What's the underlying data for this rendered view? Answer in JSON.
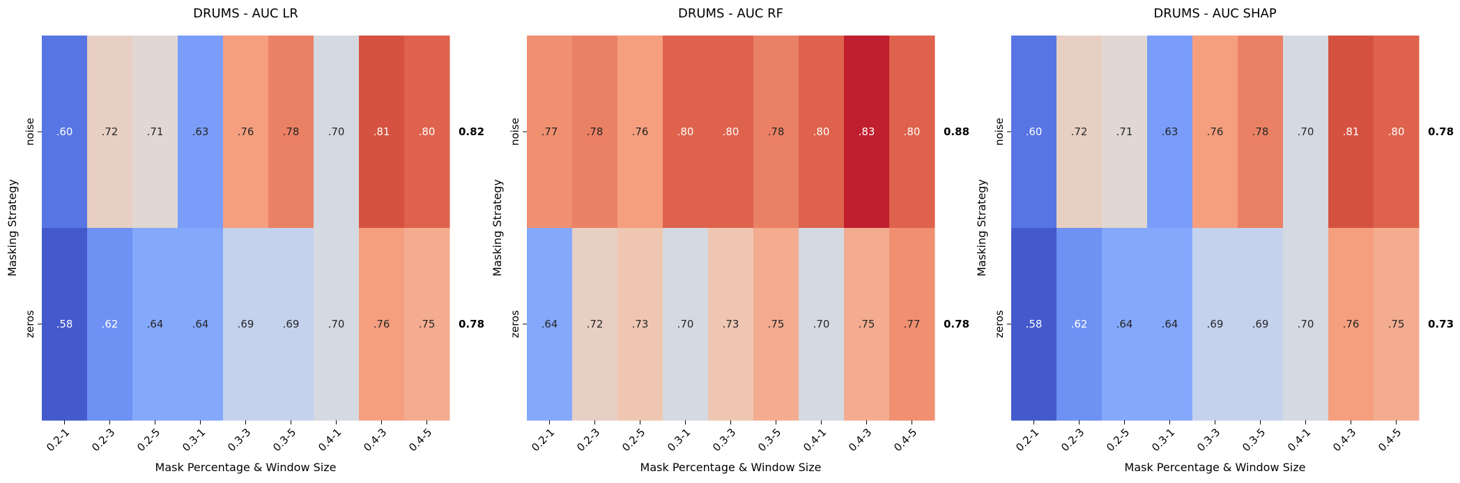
{
  "chart_data": [
    {
      "type": "heatmap",
      "title": "DRUMS - AUC LR",
      "xlabel": "Mask Percentage & Window Size",
      "ylabel": "Masking Strategy",
      "x_categories": [
        "0.2-1",
        "0.2-3",
        "0.2-5",
        "0.3-1",
        "0.3-3",
        "0.3-5",
        "0.4-1",
        "0.4-3",
        "0.4-5"
      ],
      "y_categories": [
        "noise",
        "zeros"
      ],
      "values": [
        [
          0.6,
          0.72,
          0.71,
          0.63,
          0.76,
          0.78,
          0.7,
          0.81,
          0.8
        ],
        [
          0.58,
          0.62,
          0.64,
          0.64,
          0.69,
          0.69,
          0.7,
          0.76,
          0.75
        ]
      ],
      "cell_labels": [
        [
          ".60",
          ".72",
          ".71",
          ".63",
          ".76",
          ".78",
          ".70",
          ".81",
          ".80"
        ],
        [
          ".58",
          ".62",
          ".64",
          ".64",
          ".69",
          ".69",
          ".70",
          ".76",
          ".75"
        ]
      ],
      "row_annotations": [
        "0.82",
        "0.78"
      ],
      "colormap": "coolwarm",
      "value_range": [
        0.57,
        0.84
      ],
      "colorbar": false
    },
    {
      "type": "heatmap",
      "title": "DRUMS - AUC RF",
      "xlabel": "Mask Percentage & Window Size",
      "ylabel": "Masking Strategy",
      "x_categories": [
        "0.2-1",
        "0.2-3",
        "0.2-5",
        "0.3-1",
        "0.3-3",
        "0.3-5",
        "0.4-1",
        "0.4-3",
        "0.4-5"
      ],
      "y_categories": [
        "noise",
        "zeros"
      ],
      "values": [
        [
          0.77,
          0.78,
          0.76,
          0.8,
          0.8,
          0.78,
          0.8,
          0.83,
          0.8
        ],
        [
          0.64,
          0.72,
          0.73,
          0.7,
          0.73,
          0.75,
          0.7,
          0.75,
          0.77
        ]
      ],
      "cell_labels": [
        [
          ".77",
          ".78",
          ".76",
          ".80",
          ".80",
          ".78",
          ".80",
          ".83",
          ".80"
        ],
        [
          ".64",
          ".72",
          ".73",
          ".70",
          ".73",
          ".75",
          ".70",
          ".75",
          ".77"
        ]
      ],
      "row_annotations": [
        "0.88",
        "0.78"
      ],
      "colormap": "coolwarm",
      "value_range": [
        0.57,
        0.84
      ],
      "colorbar": false
    },
    {
      "type": "heatmap",
      "title": "DRUMS - AUC SHAP",
      "xlabel": "Mask Percentage & Window Size",
      "ylabel": "Masking Strategy",
      "x_categories": [
        "0.2-1",
        "0.2-3",
        "0.2-5",
        "0.3-1",
        "0.3-3",
        "0.3-5",
        "0.4-1",
        "0.4-3",
        "0.4-5"
      ],
      "y_categories": [
        "noise",
        "zeros"
      ],
      "values": [
        [
          0.6,
          0.72,
          0.71,
          0.63,
          0.76,
          0.78,
          0.7,
          0.81,
          0.8
        ],
        [
          0.58,
          0.62,
          0.64,
          0.64,
          0.69,
          0.69,
          0.7,
          0.76,
          0.75
        ]
      ],
      "cell_labels": [
        [
          ".60",
          ".72",
          ".71",
          ".63",
          ".76",
          ".78",
          ".70",
          ".81",
          ".80"
        ],
        [
          ".58",
          ".62",
          ".64",
          ".64",
          ".69",
          ".69",
          ".70",
          ".76",
          ".75"
        ]
      ],
      "row_annotations": [
        "0.78",
        "0.73"
      ],
      "colormap": "coolwarm",
      "value_range": [
        0.57,
        0.84
      ],
      "colorbar": false
    }
  ]
}
